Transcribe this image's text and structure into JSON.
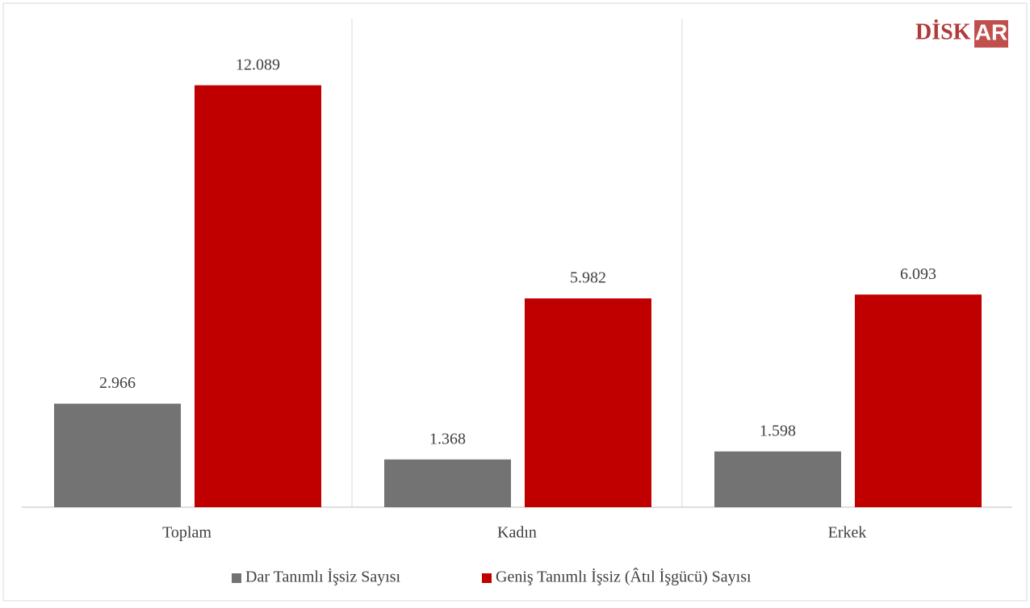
{
  "chart_data": {
    "type": "bar",
    "categories": [
      "Toplam",
      "Kadın",
      "Erkek"
    ],
    "series": [
      {
        "name": "Dar Tanımlı İşsiz Sayısı",
        "color": "#737373",
        "values": [
          2966,
          1368,
          1598
        ],
        "value_labels": [
          "2.966",
          "1.368",
          "1.598"
        ]
      },
      {
        "name": "Geniş Tanımlı İşsiz (Âtıl İşgücü) Sayısı",
        "color": "#c00000",
        "values": [
          12089,
          5982,
          6093
        ],
        "value_labels": [
          "12.089",
          "5.982",
          "6.093"
        ]
      }
    ],
    "ylim": [
      0,
      14000
    ],
    "logo": {
      "left": "DİSK",
      "right": "AR"
    }
  }
}
